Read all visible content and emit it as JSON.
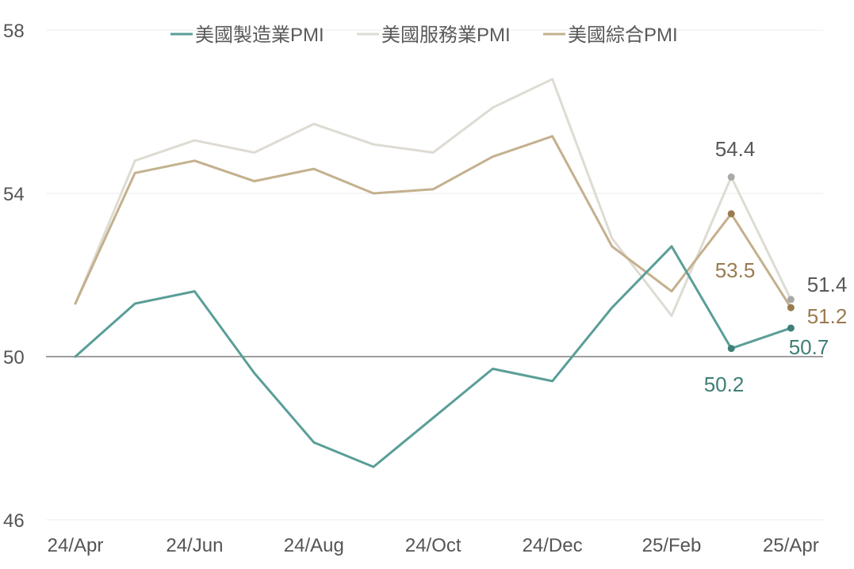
{
  "chart_data": {
    "type": "line",
    "title": "",
    "xlabel": "",
    "ylabel": "",
    "ylim": [
      46,
      58
    ],
    "yticks": [
      46,
      50,
      54,
      58
    ],
    "categories": [
      "24/Apr",
      "24/May",
      "24/Jun",
      "24/Jul",
      "24/Aug",
      "24/Sep",
      "24/Oct",
      "24/Nov",
      "24/Dec",
      "25/Jan",
      "25/Feb",
      "25/Mar",
      "25/Apr"
    ],
    "xtick_labels": [
      "24/Apr",
      "",
      "24/Jun",
      "",
      "24/Aug",
      "",
      "24/Oct",
      "",
      "24/Dec",
      "",
      "25/Feb",
      "",
      "25/Apr"
    ],
    "reference_line": 50,
    "legend_position": "top",
    "grid": true,
    "series": [
      {
        "name": "美國製造業PMI",
        "color": "#5A9E98",
        "label_color": "#3E7F77",
        "values": [
          50.0,
          51.3,
          51.6,
          49.6,
          47.9,
          47.3,
          48.5,
          49.7,
          49.4,
          51.2,
          52.7,
          50.2,
          50.7
        ],
        "labels": [
          {
            "index": 11,
            "text": "50.2"
          },
          {
            "index": 12,
            "text": "50.7"
          }
        ]
      },
      {
        "name": "美國服務業PMI",
        "color": "#DEDBD3",
        "label_color": "#595959",
        "values": [
          51.3,
          54.8,
          55.3,
          55.0,
          55.7,
          55.2,
          55.0,
          56.1,
          56.8,
          52.9,
          51.0,
          54.4,
          51.4
        ],
        "labels": [
          {
            "index": 11,
            "text": "54.4"
          },
          {
            "index": 12,
            "text": "51.4"
          }
        ]
      },
      {
        "name": "美國綜合PMI",
        "color": "#C4B08E",
        "label_color": "#9A7B4F",
        "values": [
          51.3,
          54.5,
          54.8,
          54.3,
          54.6,
          54.0,
          54.1,
          54.9,
          55.4,
          52.7,
          51.6,
          53.5,
          51.2
        ],
        "labels": [
          {
            "index": 11,
            "text": "53.5"
          },
          {
            "index": 12,
            "text": "51.2"
          }
        ]
      }
    ]
  }
}
